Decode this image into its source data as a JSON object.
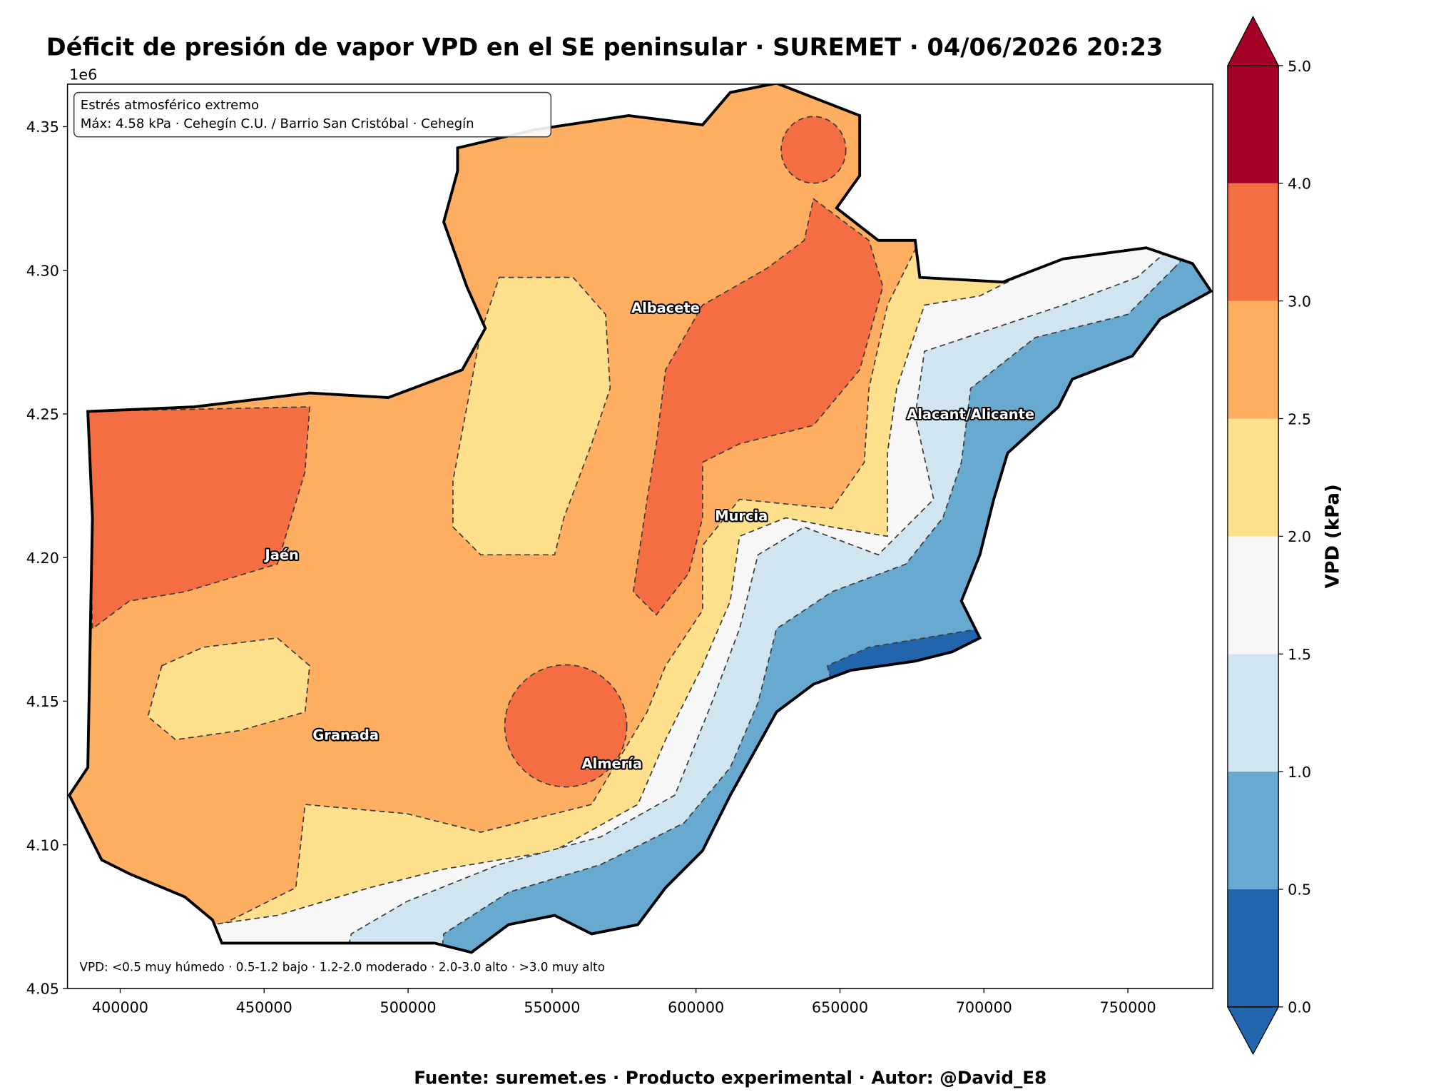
{
  "title": "Déficit de presión de vapor VPD en el SE peninsular · SUREMET · 04/06/2026 20:23",
  "offset_label": "1e6",
  "annotation": [
    "Estrés atmosférico extremo",
    "Máx: 4.58 kPa · Cehegín C.U. / Barrio San Cristóbal · Cehegín"
  ],
  "legend_note": "VPD: <0.5 muy húmedo · 0.5-1.2 bajo · 1.2-2.0 moderado · 2.0-3.0 alto · >3.0 muy alto",
  "footer": "Fuente: suremet.es · Producto experimental · Autor: @David_E8",
  "cities": [
    "Albacete",
    "Alacant/Alicante",
    "Murcia",
    "Jaén",
    "Granada",
    "Almería"
  ],
  "map": {
    "xlim": [
      381700,
      779500
    ],
    "ylim": [
      4.05,
      4.3648
    ],
    "xticks": [
      400000,
      450000,
      500000,
      550000,
      600000,
      650000,
      700000,
      750000
    ],
    "yticks": [
      4.05,
      {
        "value": 4.1,
        "label": "4.10"
      },
      4.15,
      {
        "value": 4.2,
        "label": "4.20"
      },
      4.25,
      {
        "value": 4.3,
        "label": "4.30"
      },
      4.35
    ]
  },
  "colorbar": {
    "label": "VPD (kPa)",
    "levels": [
      {
        "value": 0,
        "label": "0.0"
      },
      0.5,
      {
        "value": 1,
        "label": "1.0"
      },
      1.5,
      {
        "value": 2,
        "label": "2.0"
      },
      2.5,
      {
        "value": 3,
        "label": "3.0"
      },
      {
        "value": 4,
        "label": "4.0"
      },
      {
        "value": 5,
        "label": "5.0"
      }
    ],
    "colors": [
      "#2166ac",
      "#67a9cf",
      "#d1e5f0",
      "#f7f7f7",
      "#fedf8c",
      "#fdae61",
      "#f46d43",
      "#a50026"
    ]
  }
}
